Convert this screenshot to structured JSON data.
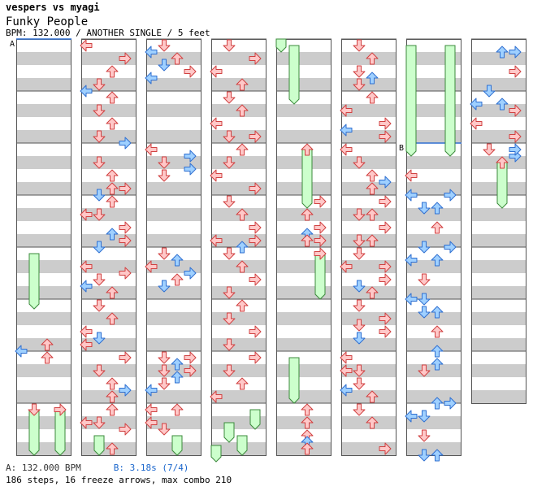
{
  "header": {
    "title": "vespers vs myagi",
    "song": "Funky People",
    "info": "BPM: 132.000 / ANOTHER SINGLE / 5 feet"
  },
  "markers": {
    "a": "A",
    "b": "B"
  },
  "footer": {
    "bpm_a": "A: 132.000 BPM",
    "bpm_b": "B: 3.18s (7/4)",
    "stats": "186 steps, 16 freeze arrows, max combo 210"
  },
  "colors": {
    "stripe": "#cccccc",
    "red_fill": "#ffc8c8",
    "red_stroke": "#d04040",
    "blue_fill": "#9fd0ff",
    "blue_stroke": "#2f6fd0",
    "freeze_fill": "#ccffcc",
    "freeze_stroke": "#3b8a3b"
  },
  "chart": {
    "columns": 8,
    "measures_per_column": 8,
    "measures_shown": 63,
    "step_count": 186,
    "freeze_count": 16,
    "max_combo": 210
  }
}
